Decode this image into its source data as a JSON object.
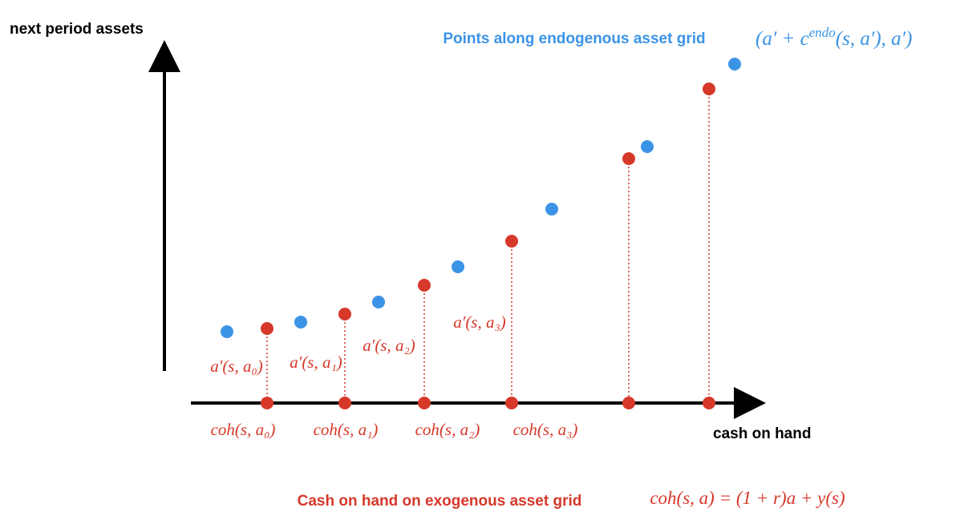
{
  "axes": {
    "y_label": "next period assets",
    "x_label": "cash on hand"
  },
  "endogenous": {
    "title": "Points along endogenous asset grid",
    "formula": {
      "start": "(a′ + c",
      "sup": "endo",
      "end": "(s, a′), a′)"
    }
  },
  "exogenous": {
    "title": "Cash on hand on exogenous asset grid",
    "formula": "coh(s, a) = (1 + r)a + y(s)"
  },
  "policy_labels": [
    "a′(s, a₀)",
    "a′(s, a₁)",
    "a′(s, a₂)",
    "a′(s, a₃)"
  ],
  "coh_labels": [
    "coh(s, a₀)",
    "coh(s, a₁)",
    "coh(s, a₂)",
    "coh(s, a₃)"
  ]
}
